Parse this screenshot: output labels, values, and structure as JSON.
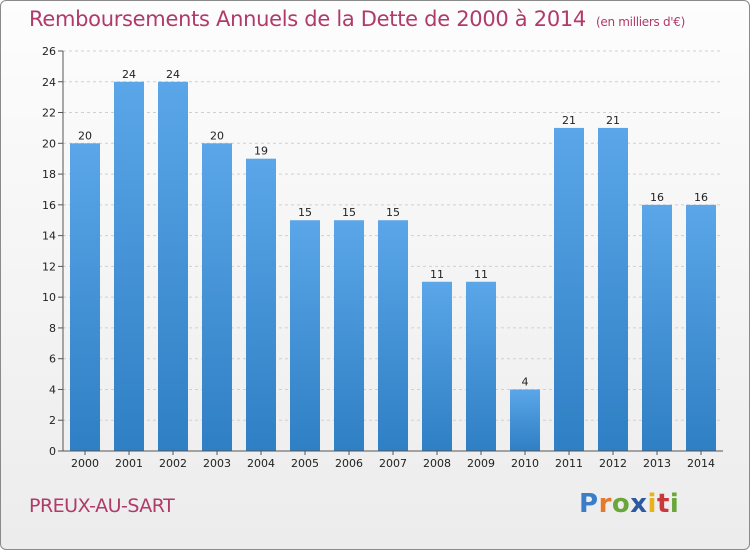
{
  "header": {
    "title": "Remboursements Annuels de la Dette de 2000 à 2014",
    "unit": "(en milliers d'€)"
  },
  "footer": {
    "commune": "PREUX-AU-SART",
    "logo": "Proxiti"
  },
  "colors": {
    "bar": "#5aa6e8",
    "bar_dark": "#2f7fc4",
    "title": "#b03a6a"
  },
  "chart_data": {
    "type": "bar",
    "title": "Remboursements Annuels de la Dette de 2000 à 2014",
    "xlabel": "",
    "ylabel": "",
    "categories": [
      "2000",
      "2001",
      "2002",
      "2003",
      "2004",
      "2005",
      "2006",
      "2007",
      "2008",
      "2009",
      "2010",
      "2011",
      "2012",
      "2013",
      "2014"
    ],
    "values": [
      20,
      24,
      24,
      20,
      19,
      15,
      15,
      15,
      11,
      11,
      4,
      21,
      21,
      16,
      16
    ],
    "ylim": [
      0,
      26
    ],
    "yticks": [
      0,
      2,
      4,
      6,
      8,
      10,
      12,
      14,
      16,
      18,
      20,
      22,
      24,
      26
    ],
    "grid": true
  }
}
